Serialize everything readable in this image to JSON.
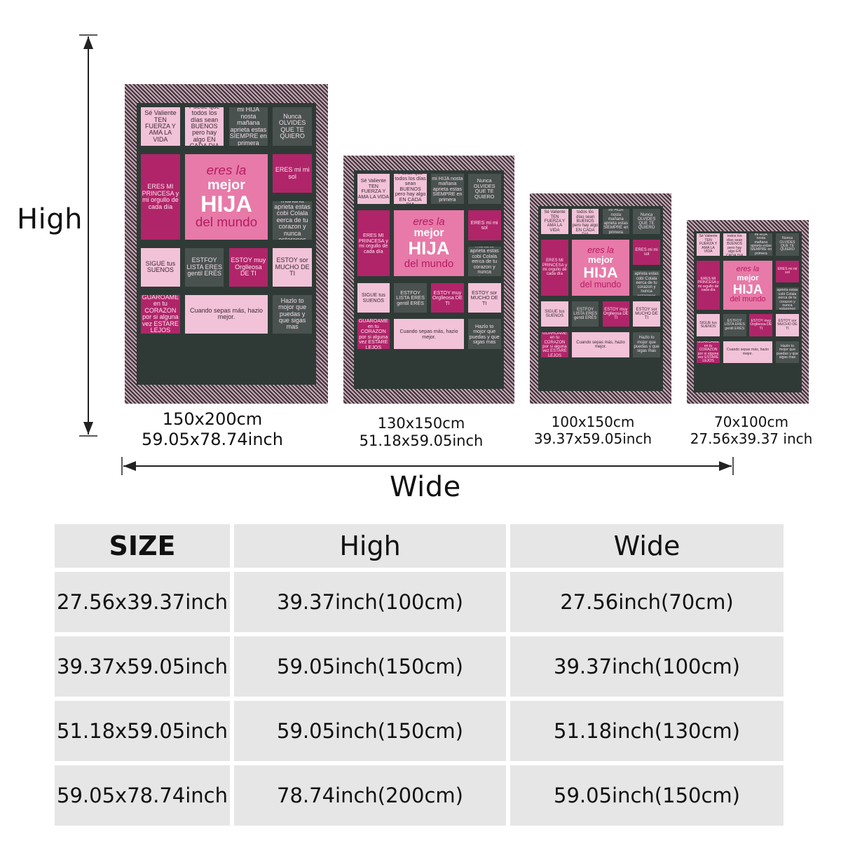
{
  "axis": {
    "high_label": "High",
    "wide_label": "Wide"
  },
  "blanket_artwork": {
    "tiles": {
      "valiente": "Sé Valiente TEN FUERZA Y AMA LA VIDA",
      "puede": "Puede que todos los días sean BUENOS pero hay algo EN CADA DIA",
      "mihija": "mi HIJA nosta mañana aprieta estas SIEMPRE en primera",
      "nunca": "Nunca OLVIDES QUE TE QUIERO",
      "princesa": "ERES MI PRINCESA y mi orgullo de cada día",
      "hero_1": "eres la",
      "hero_2": "mejor",
      "hero_3": "HIJA",
      "hero_4": "del mundo",
      "misol": "ERES mi mi sol",
      "manana": "hasta mañana aprieta estas cobi Colala eerca de tu corazon y nunca estarenos seporados",
      "sigue": "SIGUE tus SUENOS",
      "guardame": "GUAROAME en tu CORAZON por si alguna vez ESTARE LEJOS",
      "lista": "ESTFOY LISTA ERES gentil ERÉS",
      "orgullosa": "ESTOY muy Orglleosa DE TI",
      "mucho": "ESTOY sor MUCHO DE TI",
      "cuando": "Cuando sepas más, hazio mejor.",
      "hazlo": "Hazlo to mojor que puedas y que sigas mas"
    }
  },
  "blankets": [
    {
      "cm": "150x200cm",
      "inch": "59.05x78.74inch"
    },
    {
      "cm": "130x150cm",
      "inch": "51.18x59.05inch"
    },
    {
      "cm": "100x150cm",
      "inch": "39.37x59.05inch"
    },
    {
      "cm": "70x100cm",
      "inch": "27.56x39.37 inch"
    }
  ],
  "table": {
    "headers": {
      "size": "SIZE",
      "high": "High",
      "wide": "Wide"
    },
    "rows": [
      {
        "size": "27.56x39.37inch",
        "high": "39.37inch(100cm)",
        "wide": "27.56inch(70cm)"
      },
      {
        "size": "39.37x59.05inch",
        "high": "59.05inch(150cm)",
        "wide": "39.37inch(100cm)"
      },
      {
        "size": "51.18x59.05inch",
        "high": "59.05inch(150cm)",
        "wide": "51.18inch(130cm)"
      },
      {
        "size": "59.05x78.74inch",
        "high": "78.74inch(200cm)",
        "wide": "59.05inch(150cm)"
      }
    ]
  },
  "colors": {
    "magenta": "#b02569",
    "pink": "#f2c2d8",
    "hero_pink": "#e77aa8",
    "charcoal": "#4a5250",
    "table_cell": "#e6e6e6"
  }
}
